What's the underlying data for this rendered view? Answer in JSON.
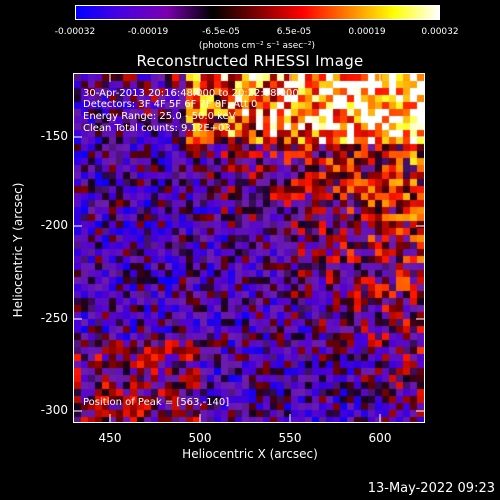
{
  "colorbar": {
    "ticks": [
      "-0.00032",
      "-0.00019",
      "-6.5e-05",
      "6.5e-05",
      "0.00019",
      "0.00032"
    ],
    "unit_label": "(photons cm⁻² s⁻¹ asec⁻²)",
    "gradient": [
      "#0000ff",
      "#4a00e0",
      "#7a00b0",
      "#000000",
      "#800000",
      "#ff0000",
      "#ff8000",
      "#ffff00",
      "#ffffff"
    ]
  },
  "plot": {
    "title": "Reconstructed RHESSI Image",
    "info": {
      "time_range": "30-Apr-2013 20:16:48.000 to 20:22:08.000",
      "detectors": "Detectors: 3F 4F 5F 6F 7F 8F, Att 0",
      "energy": "Energy Range: 25.0 - 50.0 keV",
      "algorithm": "Clean     Total counts: 9.12E+03",
      "peak": "Position of Peak = [563,-140]"
    },
    "x_axis": {
      "label": "Heliocentric X (arcsec)",
      "ticks": [
        "450",
        "500",
        "550",
        "600"
      ],
      "range": [
        430,
        625
      ]
    },
    "y_axis": {
      "label": "Heliocentric Y (arcsec)",
      "ticks": [
        "-150",
        "-200",
        "-250",
        "-300"
      ],
      "range": [
        -307,
        -117
      ]
    }
  },
  "footer": {
    "date_stamp": "13-May-2022 09:23"
  }
}
